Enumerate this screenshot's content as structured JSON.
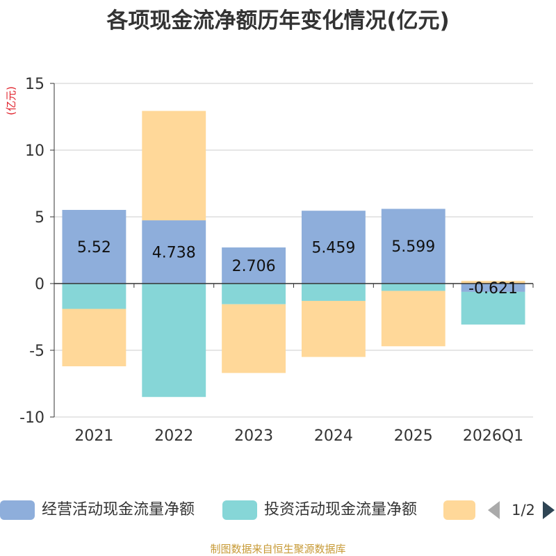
{
  "chart_data": {
    "type": "bar",
    "stacked": true,
    "title": "各项现金流净额历年变化情况(亿元)",
    "ylabel": "(亿元)",
    "xlabel": "",
    "ylim": [
      -10,
      15
    ],
    "yticks": [
      -10,
      -5,
      0,
      5,
      10,
      15
    ],
    "grid": true,
    "categories": [
      "2021",
      "2022",
      "2023",
      "2024",
      "2025",
      "2026Q1"
    ],
    "series": [
      {
        "name": "经营活动现金流量净额",
        "color": "#8eaedb",
        "values": [
          5.52,
          4.738,
          2.706,
          5.459,
          5.599,
          -0.621
        ],
        "labels": [
          "5.52",
          "4.738",
          "2.706",
          "5.459",
          "5.599",
          "-0.621"
        ]
      },
      {
        "name": "投资活动现金流量净额",
        "color": "#86d6d7",
        "values": [
          -1.9,
          -8.5,
          -1.55,
          -1.3,
          -0.55,
          -2.45
        ]
      },
      {
        "name": "",
        "color": "#ffd899",
        "values": [
          -4.3,
          8.2,
          -5.15,
          -4.2,
          -4.15,
          0.2
        ]
      }
    ]
  },
  "legend": {
    "page": "1/2"
  },
  "source": "制图数据来自恒生聚源数据库"
}
